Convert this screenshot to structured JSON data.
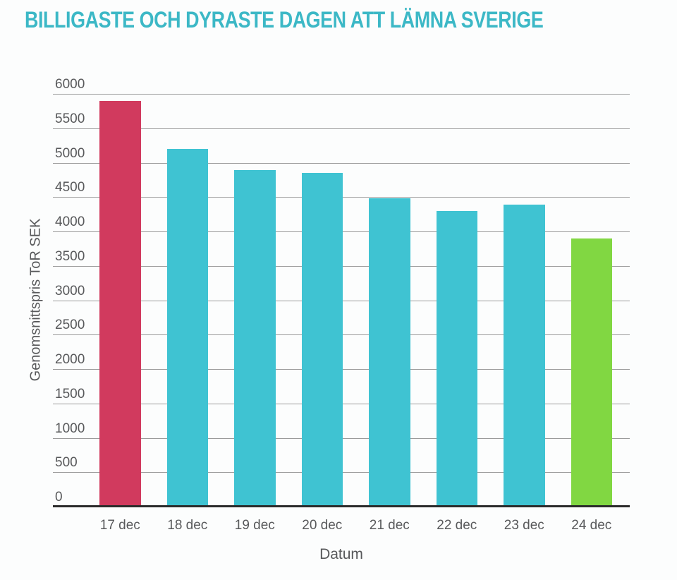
{
  "title": {
    "text": "BILLIGASTE OCH DYRASTE DAGEN ATT LÄMNA SVERIGE",
    "color": "#3cb8c6"
  },
  "chart_data": {
    "type": "bar",
    "title": "BILLIGASTE OCH DYRASTE DAGEN ATT LÄMNA SVERIGE",
    "xlabel": "Datum",
    "ylabel": "Genomsnittspris ToR SEK",
    "categories": [
      "17 dec",
      "18 dec",
      "19 dec",
      "20 dec",
      "21 dec",
      "22 dec",
      "23 dec",
      "24 dec"
    ],
    "values": [
      5900,
      5200,
      4890,
      4850,
      4480,
      4300,
      4390,
      3900
    ],
    "bar_colors": [
      "#d13a5e",
      "#3fc3d2",
      "#3fc3d2",
      "#3fc3d2",
      "#3fc3d2",
      "#3fc3d2",
      "#3fc3d2",
      "#81d742"
    ],
    "highlight_colors": {
      "most_expensive_bar": "#d13a5e",
      "default_bar": "#3fc3d2",
      "cheapest_bar": "#81d742"
    },
    "ylim": [
      0,
      6000
    ],
    "ytick_labels": [
      "0",
      "500",
      "1000",
      "1500",
      "2000",
      "2500",
      "3000",
      "3500",
      "4000",
      "4500",
      "5000",
      "5500",
      "6000"
    ],
    "grid": true,
    "legend": "none",
    "axis_colors": {
      "gridline": "#9b9b9b",
      "baseline": "#2b2b2b",
      "tick_text": "#58595b"
    }
  }
}
